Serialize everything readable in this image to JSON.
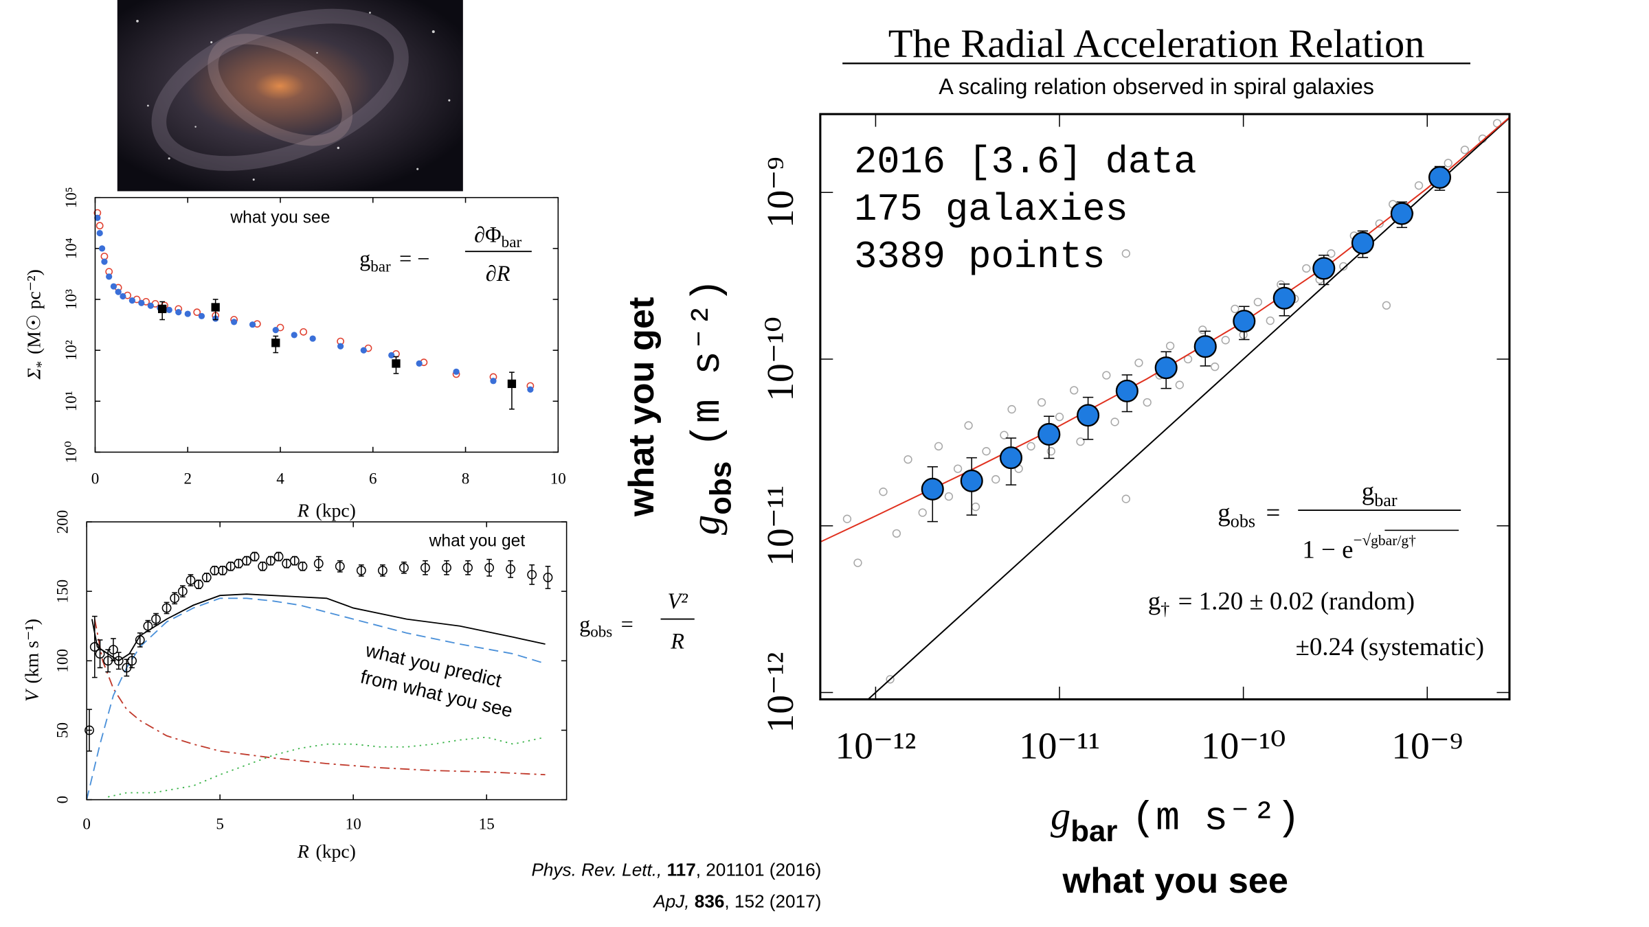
{
  "slide": {
    "title": "The Radial Acceleration Relation",
    "subtitle": "A scaling relation observed in spiral galaxies"
  },
  "references": [
    {
      "journal": "Phys. Rev. Lett.,",
      "volume": "117",
      "pages": ", 201101 (2016)"
    },
    {
      "journal": "ApJ,",
      "volume": "836",
      "pages": ", 152 (2017)"
    }
  ],
  "equations": {
    "gbar": {
      "lhs": "g",
      "lhs_sub": "bar",
      "op": "= −",
      "num": "∂Φ",
      "num_sub": "bar",
      "den": "∂R"
    },
    "gobs_v": {
      "lhs": "g",
      "lhs_sub": "obs",
      "op": "=",
      "num": "V²",
      "den": "R"
    },
    "rar": {
      "lhs": "g",
      "lhs_sub": "obs",
      "op": "=",
      "num": "g",
      "num_sub": "bar",
      "den": "1 − e",
      "den_sup": "−√",
      "radicand": "gbar/g†"
    },
    "gdagger": {
      "lhs": "g",
      "lhs_sub": "†",
      "rhs": "= 1.20 ± 0.02 (random)",
      "systematic": "±0.24 (systematic)"
    }
  },
  "chart_data": [
    {
      "type": "scatter",
      "xscale": "linear",
      "yscale": "log",
      "annotations": [
        "what you see"
      ],
      "xlabel": {
        "symbol": "R",
        "unit": "(kpc)"
      },
      "ylabel": {
        "symbol": "Σ",
        "sub": "*",
        "unit": "(M☉ pc⁻²)"
      },
      "xlim": [
        0,
        10
      ],
      "xticks": [
        0,
        2,
        4,
        6,
        8,
        10
      ],
      "ylim": [
        1,
        100000
      ],
      "yticks": [
        {
          "value": 1,
          "label": "10⁰"
        },
        {
          "value": 10,
          "label": "10¹"
        },
        {
          "value": 100,
          "label": "10²"
        },
        {
          "value": 1000,
          "label": "10³"
        },
        {
          "value": 10000,
          "label": "10⁴"
        },
        {
          "value": 100000,
          "label": "10⁵"
        }
      ],
      "series": [
        {
          "color": "#e04030",
          "marker": "open-circle",
          "x": [
            0.05,
            0.1,
            0.2,
            0.3,
            0.5,
            0.7,
            0.9,
            1.1,
            1.3,
            1.5,
            1.8,
            2.2,
            2.6,
            3.0,
            3.5,
            4.0,
            4.5,
            5.3,
            5.9,
            6.5,
            7.1,
            7.8,
            8.6,
            9.4
          ],
          "y": [
            50000,
            28000,
            7000,
            3500,
            1700,
            1200,
            1000,
            900,
            820,
            760,
            650,
            560,
            480,
            400,
            330,
            280,
            230,
            150,
            110,
            85,
            58,
            34,
            30,
            20
          ]
        },
        {
          "color": "#3a6fd8",
          "marker": "circle",
          "x": [
            0.05,
            0.1,
            0.15,
            0.2,
            0.3,
            0.4,
            0.5,
            0.6,
            0.8,
            1.0,
            1.2,
            1.4,
            1.6,
            1.8,
            2.0,
            2.3,
            2.6,
            3.0,
            3.4,
            3.9,
            4.3,
            4.7,
            5.3,
            5.8,
            6.4,
            7.0,
            7.8,
            8.6,
            9.4
          ],
          "y": [
            40000,
            20000,
            10000,
            5500,
            2800,
            1800,
            1400,
            1150,
            950,
            850,
            750,
            680,
            620,
            560,
            520,
            470,
            420,
            360,
            320,
            250,
            200,
            170,
            120,
            100,
            80,
            55,
            38,
            25,
            17
          ]
        },
        {
          "color": "#000000",
          "marker": "square",
          "x": [
            1.45,
            2.6,
            3.9,
            6.5,
            9.0
          ],
          "y": [
            650,
            700,
            140,
            55,
            22
          ],
          "errors": [
            250,
            300,
            50,
            20,
            15
          ]
        }
      ]
    },
    {
      "type": "scatter",
      "xscale": "linear",
      "yscale": "linear",
      "annotations": [
        "what you get",
        "what you predict",
        "from what you see"
      ],
      "xlabel": {
        "symbol": "R",
        "unit": "(kpc)"
      },
      "ylabel": {
        "symbol": "V",
        "unit": "(km s⁻¹)"
      },
      "xlim": [
        0,
        18
      ],
      "xticks": [
        0,
        5,
        10,
        15
      ],
      "ylim": [
        0,
        200
      ],
      "yticks": [
        0,
        50,
        100,
        150,
        200
      ],
      "series": [
        {
          "color": "#c0392b",
          "line": "dashdot",
          "x": [
            0.3,
            0.6,
            1,
            1.5,
            2,
            3,
            4,
            5,
            7,
            9,
            11,
            13,
            15,
            17.2
          ],
          "y": [
            130,
            100,
            80,
            65,
            57,
            46,
            40,
            35,
            30,
            26,
            23,
            21,
            20,
            18
          ]
        },
        {
          "color": "#3cb44b",
          "line": "dotted",
          "x": [
            0.8,
            1.5,
            2.5,
            4,
            5,
            6,
            7,
            8,
            9,
            10,
            11,
            12,
            13,
            14,
            15,
            16,
            17.2
          ],
          "y": [
            2,
            5,
            5,
            10,
            18,
            25,
            32,
            37,
            40,
            40,
            38,
            38,
            40,
            43,
            45,
            40,
            45
          ]
        },
        {
          "color": "#4a90d9",
          "line": "dashed",
          "x": [
            0,
            0.5,
            1,
            1.5,
            2,
            3,
            4,
            5,
            6,
            7,
            8,
            10,
            12,
            14,
            16,
            17.2
          ],
          "y": [
            0,
            40,
            75,
            95,
            110,
            128,
            138,
            145,
            145,
            143,
            140,
            130,
            120,
            112,
            105,
            98
          ]
        },
        {
          "color": "#000000",
          "line": "solid",
          "x": [
            0.2,
            0.4,
            0.8,
            1.2,
            1.6,
            2,
            3,
            4,
            5,
            6,
            8,
            9,
            10,
            12,
            14,
            16,
            17.2
          ],
          "y": [
            130,
            110,
            105,
            100,
            105,
            118,
            130,
            140,
            147,
            148,
            146,
            145,
            138,
            130,
            125,
            117,
            112
          ]
        },
        {
          "color": "#000000",
          "marker": "open-circle",
          "x": [
            0.1,
            0.3,
            0.5,
            0.8,
            1.0,
            1.2,
            1.5,
            1.7,
            2.0,
            2.3,
            2.6,
            3.0,
            3.3,
            3.6,
            3.9,
            4.2,
            4.5,
            4.8,
            5.1,
            5.4,
            5.7,
            6.0,
            6.3,
            6.6,
            6.9,
            7.2,
            7.5,
            7.8,
            8.1,
            8.7,
            9.5,
            10.3,
            11.1,
            11.9,
            12.7,
            13.5,
            14.3,
            15.1,
            15.9,
            16.7,
            17.3
          ],
          "y": [
            50,
            110,
            105,
            100,
            108,
            100,
            95,
            100,
            115,
            125,
            130,
            138,
            145,
            150,
            158,
            155,
            160,
            165,
            165,
            168,
            170,
            172,
            175,
            168,
            172,
            175,
            170,
            172,
            168,
            170,
            168,
            165,
            165,
            167,
            167,
            167,
            167,
            167,
            166,
            162,
            160
          ],
          "errors": [
            15,
            22,
            10,
            8,
            8,
            6,
            6,
            5,
            5,
            4,
            4,
            4,
            4,
            4,
            4,
            3,
            3,
            3,
            3,
            3,
            3,
            3,
            3,
            3,
            3,
            3,
            3,
            3,
            3,
            5,
            4,
            4,
            4,
            4,
            5,
            5,
            5,
            6,
            6,
            7,
            8
          ]
        }
      ]
    },
    {
      "type": "scatter",
      "xscale": "log",
      "yscale": "log",
      "annotations": [
        "2016 [3.6] data",
        "175 galaxies",
        "3389 points"
      ],
      "xlabel": {
        "caption": "what you see",
        "symbol": "g",
        "sub": "bar",
        "unit": "(m s⁻²)"
      },
      "ylabel": {
        "caption": "what you get",
        "symbol": "g",
        "sub": "obs",
        "unit": "(m s⁻²)"
      },
      "xlim": [
        5e-13,
        2.8e-09
      ],
      "xticks": [
        {
          "value": 1e-12,
          "label": "10⁻¹²"
        },
        {
          "value": 1e-11,
          "label": "10⁻¹¹"
        },
        {
          "value": 1e-10,
          "label": "10⁻¹⁰"
        },
        {
          "value": 1e-09,
          "label": "10⁻⁹"
        }
      ],
      "ylim": [
        9.1e-13,
        2.95e-09
      ],
      "yticks": [
        {
          "value": 1e-12,
          "label": "10⁻¹²"
        },
        {
          "value": 1e-11,
          "label": "10⁻¹¹"
        },
        {
          "value": 1e-10,
          "label": "10⁻¹⁰"
        },
        {
          "value": 1e-09,
          "label": "10⁻⁹"
        }
      ],
      "series": [
        {
          "color": "#a8a8a8",
          "marker": "open-circle",
          "x": [
            7e-13,
            8e-13,
            1.1e-12,
            1.3e-12,
            1.5e-12,
            1.8e-12,
            2.2e-12,
            2.5e-12,
            2.8e-12,
            3.2e-12,
            3.5e-12,
            4e-12,
            4.5e-12,
            5e-12,
            5.5e-12,
            6e-12,
            7e-12,
            8e-12,
            9e-12,
            1e-11,
            1.2e-11,
            1.3e-11,
            1.5e-11,
            1.8e-11,
            2e-11,
            2.3e-11,
            2.7e-11,
            3e-11,
            3.5e-11,
            4e-11,
            4.5e-11,
            5e-11,
            6e-11,
            7e-11,
            8e-11,
            9e-11,
            1e-10,
            1.2e-10,
            1.4e-10,
            1.6e-10,
            1.9e-10,
            2.2e-10,
            2.6e-10,
            3e-10,
            3.5e-10,
            4e-10,
            4.5e-10,
            5.5e-10,
            6.5e-10,
            8e-10,
            9e-10,
            1.1e-09,
            1.3e-09,
            1.6e-09,
            2e-09,
            2.4e-09,
            2.3e-11,
            2.3e-11,
            1.2e-12,
            6e-10
          ],
          "y": [
            1.1e-11,
            6e-12,
            1.6e-11,
            9e-12,
            2.5e-11,
            1.2e-11,
            3e-11,
            1.5e-11,
            2.2e-11,
            4e-11,
            1.3e-11,
            2.8e-11,
            1.9e-11,
            3.5e-11,
            5e-11,
            2.2e-11,
            3e-11,
            5.5e-11,
            2.8e-11,
            4.5e-11,
            6.5e-11,
            3.2e-11,
            5e-11,
            8e-11,
            4.2e-11,
            6e-11,
            9.5e-11,
            5.5e-11,
            8e-11,
            1.2e-10,
            7e-11,
            1e-10,
            1.5e-10,
            9e-11,
            1.3e-10,
            2e-10,
            1.4e-10,
            2.2e-10,
            1.7e-10,
            2.8e-10,
            2.3e-10,
            3.5e-10,
            3e-10,
            4.3e-10,
            3.6e-10,
            5.5e-10,
            4.5e-10,
            6.5e-10,
            8.5e-10,
            7.5e-10,
            1.1e-09,
            1.3e-09,
            1.5e-09,
            1.8e-09,
            2.1e-09,
            2.6e-09,
            1.45e-11,
            4.3e-10,
            1.2e-12,
            2.1e-10
          ]
        },
        {
          "color": "#000000",
          "line": "solid",
          "x": [
            9.1e-13,
            2.95e-09
          ],
          "y": [
            9.1e-13,
            2.95e-09
          ]
        },
        {
          "color": "#e0301e",
          "line": "solid",
          "x": [
            5e-13,
            1e-12,
            3e-12,
            1e-11,
            3e-11,
            1e-10,
            3e-10,
            1e-09,
            2.8e-09
          ],
          "y": [
            8e-12,
            1.146e-11,
            2.05e-11,
            3.98e-11,
            7.63e-11,
            1.67e-10,
            3.78e-10,
            1.059e-09,
            2.82e-09
          ]
        },
        {
          "color": "#1e7be0",
          "edgecolor": "#000000",
          "marker": "circle",
          "x": [
            2.04e-12,
            3.33e-12,
            5.45e-12,
            8.77e-12,
            1.43e-11,
            2.33e-11,
            3.8e-11,
            6.21e-11,
            1.01e-10,
            1.67e-10,
            2.74e-10,
            4.46e-10,
            7.28e-10,
            1.17e-09
          ],
          "y": [
            1.66e-11,
            1.86e-11,
            2.56e-11,
            3.54e-11,
            4.6e-11,
            6.44e-11,
            8.87e-11,
            1.19e-10,
            1.69e-10,
            2.32e-10,
            3.5e-10,
            4.97e-10,
            7.46e-10,
            1.23e-09
          ],
          "errors": [
            6e-12,
            7e-12,
            8e-12,
            1e-11,
            1.3e-11,
            1.6e-11,
            2.2e-11,
            2.8e-11,
            3.8e-11,
            5e-11,
            7e-11,
            9e-11,
            1.3e-10,
            2e-10
          ]
        }
      ]
    }
  ]
}
